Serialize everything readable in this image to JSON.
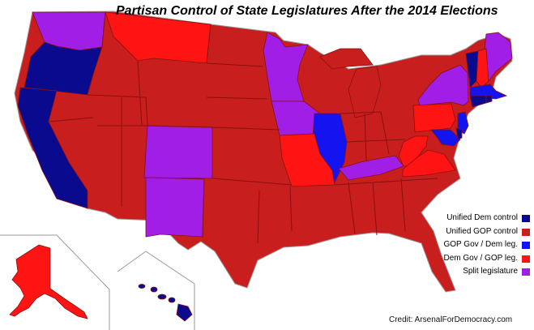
{
  "map": {
    "title": "Partisan Control of State Legislatures After the 2014 Elections",
    "credit": "Credit: ArsenalForDemocracy.com",
    "categories": {
      "dem": {
        "label": "Unified Dem control",
        "color": "#0a0a8e"
      },
      "gop": {
        "label": "Unified GOP control",
        "color": "#c81e1e"
      },
      "gopgov_demleg": {
        "label": "GOP Gov / Dem leg.",
        "color": "#1414f0"
      },
      "demgov_gopleg": {
        "label": "Dem Gov / GOP leg.",
        "color": "#ff1414"
      },
      "split": {
        "label": "Split legislature",
        "color": "#a01ee6"
      }
    },
    "legend_order": [
      "dem",
      "gop",
      "gopgov_demleg",
      "demgov_gopleg",
      "split"
    ],
    "base_color": "#c81e1e",
    "border_color": "#9a9a9a",
    "state_line_color": "#8a1010",
    "states": {
      "WA": "split",
      "OR": "dem",
      "CA": "dem",
      "MT": "demgov_gopleg",
      "MN": "split",
      "IA": "split",
      "CO": "split",
      "NM": "split",
      "IL": "gopgov_demleg",
      "MO": "demgov_gopleg",
      "KY": "split",
      "WV": "demgov_gopleg",
      "VA": "demgov_gopleg",
      "PA": "demgov_gopleg",
      "NY": "split",
      "ME": "split",
      "NH": "demgov_gopleg",
      "VT": "dem",
      "MA": "gopgov_demleg",
      "CT": "dem",
      "RI": "dem",
      "NJ": "gopgov_demleg",
      "MD": "gopgov_demleg",
      "DE": "dem",
      "AK": "demgov_gopleg",
      "HI": "dem"
    }
  }
}
